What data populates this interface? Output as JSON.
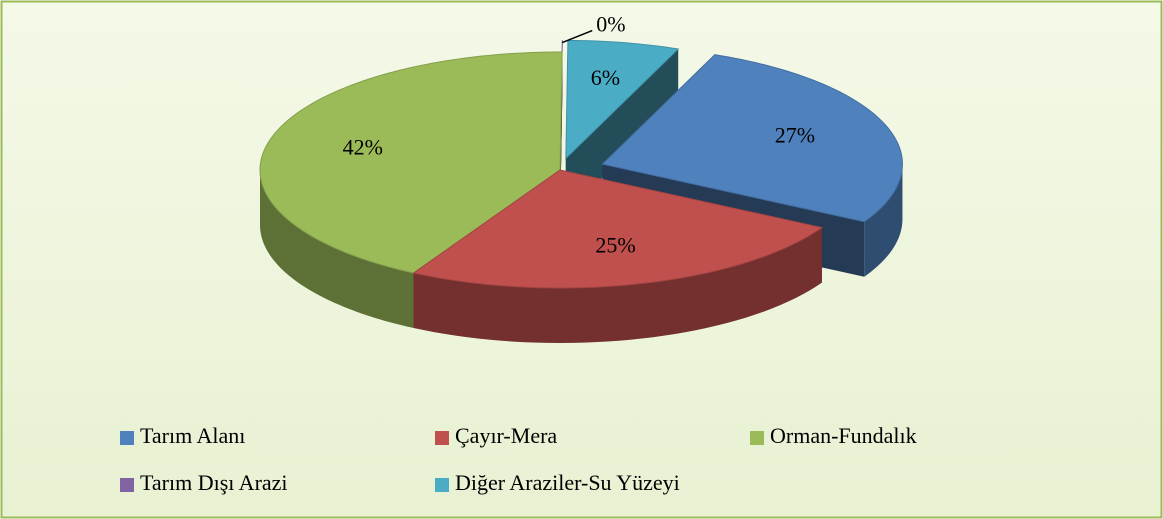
{
  "chart_data": {
    "type": "pie",
    "categories": [
      "Tarım Alanı",
      "Çayır-Mera",
      "Orman-Fundalık",
      "Tarım Dışı Arazi",
      "Diğer Araziler-Su Yüzeyi"
    ],
    "values": [
      27,
      25,
      42,
      0,
      6
    ],
    "value_labels": [
      "27%",
      "25%",
      "42%",
      "0%",
      "6%"
    ],
    "colors": [
      "#4f81bd",
      "#c0504d",
      "#9bbb59",
      "#8064a2",
      "#4bacc6"
    ],
    "legend": "bottom"
  }
}
